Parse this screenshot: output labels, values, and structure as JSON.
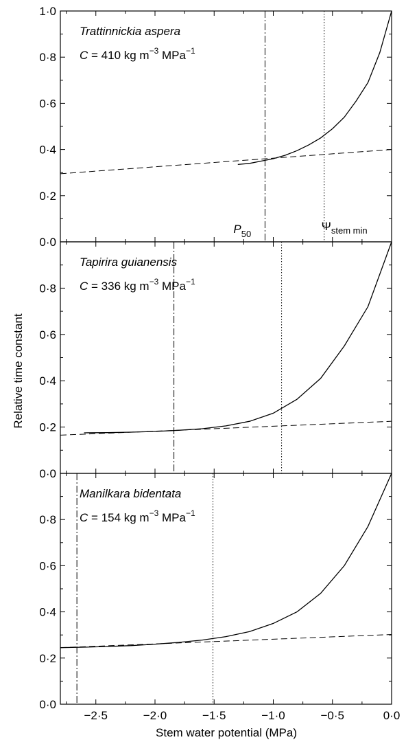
{
  "chart_data": {
    "type": "line",
    "xlabel": "Stem water potential (MPa)",
    "ylabel": "Relative time constant",
    "xlim": [
      -2.8,
      0.0
    ],
    "ylim": [
      0.0,
      1.0
    ],
    "x_ticks": [
      -2.5,
      -2.0,
      -1.5,
      -1.0,
      -0.5,
      0.0
    ],
    "x_tick_labels": [
      "−2·5",
      "−2·0",
      "−1·5",
      "−1·0",
      "−0·5",
      "0·0"
    ],
    "y_ticks": [
      0.0,
      0.2,
      0.4,
      0.6,
      0.8,
      1.0
    ],
    "y_tick_labels": [
      "0·0",
      "0·2",
      "0·4",
      "0·6",
      "0·8",
      "1·0"
    ],
    "panels": [
      {
        "species": "Trattinnickia aspera",
        "capacitance_label": "C",
        "capacitance_text": " = 410 kg m",
        "cap_exp1": "−3",
        "cap_units2": " MPa",
        "cap_exp2": "−1",
        "y_tick_labels": [
          "0·0",
          "0·2",
          "0·4",
          "0·6",
          "0·8",
          "1·0"
        ],
        "p50": -1.07,
        "psi_stem_min": -0.57,
        "p50_label": "P",
        "p50_sub": "50",
        "psi_label": "Ψ",
        "psi_sub": "stem min",
        "solid_curve": {
          "x": [
            -1.3,
            -1.2,
            -1.1,
            -1.0,
            -0.9,
            -0.8,
            -0.7,
            -0.6,
            -0.5,
            -0.4,
            -0.3,
            -0.2,
            -0.1,
            0.0
          ],
          "y": [
            0.335,
            0.34,
            0.35,
            0.36,
            0.375,
            0.395,
            0.42,
            0.45,
            0.49,
            0.54,
            0.61,
            0.69,
            0.82,
            1.0
          ]
        },
        "dashed_line": {
          "x": [
            -2.8,
            0.0
          ],
          "y": [
            0.295,
            0.4
          ]
        }
      },
      {
        "species": "Tapirira guianensis",
        "capacitance_label": "C",
        "capacitance_text": " = 336 kg m",
        "cap_exp1": "−3",
        "cap_units2": " MPa",
        "cap_exp2": "−1",
        "y_tick_labels": [
          "0·0",
          "0·2",
          "0·4",
          "0·6",
          "0·8"
        ],
        "p50": -1.84,
        "psi_stem_min": -0.93,
        "solid_curve": {
          "x": [
            -2.6,
            -2.4,
            -2.2,
            -2.0,
            -1.8,
            -1.6,
            -1.4,
            -1.2,
            -1.0,
            -0.8,
            -0.6,
            -0.4,
            -0.2,
            0.0
          ],
          "y": [
            0.175,
            0.176,
            0.178,
            0.181,
            0.186,
            0.193,
            0.205,
            0.225,
            0.26,
            0.32,
            0.41,
            0.55,
            0.72,
            1.0
          ]
        },
        "dashed_line": {
          "x": [
            -2.8,
            0.0
          ],
          "y": [
            0.165,
            0.225
          ]
        }
      },
      {
        "species": "Manilkara bidentata",
        "capacitance_label": "C",
        "capacitance_text": " = 154 kg m",
        "cap_exp1": "−3",
        "cap_units2": " MPa",
        "cap_exp2": "−1",
        "y_tick_labels": [
          "0·0",
          "0·2",
          "0·4",
          "0·6",
          "0·8"
        ],
        "p50": -2.66,
        "psi_stem_min": -1.51,
        "solid_curve": {
          "x": [
            -2.8,
            -2.6,
            -2.4,
            -2.2,
            -2.0,
            -1.8,
            -1.6,
            -1.4,
            -1.2,
            -1.0,
            -0.8,
            -0.6,
            -0.4,
            -0.2,
            0.0
          ],
          "y": [
            0.245,
            0.247,
            0.25,
            0.254,
            0.26,
            0.268,
            0.278,
            0.293,
            0.315,
            0.35,
            0.4,
            0.48,
            0.6,
            0.77,
            1.0
          ]
        },
        "dashed_line": {
          "x": [
            -2.8,
            0.0
          ],
          "y": [
            0.245,
            0.302
          ]
        }
      }
    ]
  }
}
